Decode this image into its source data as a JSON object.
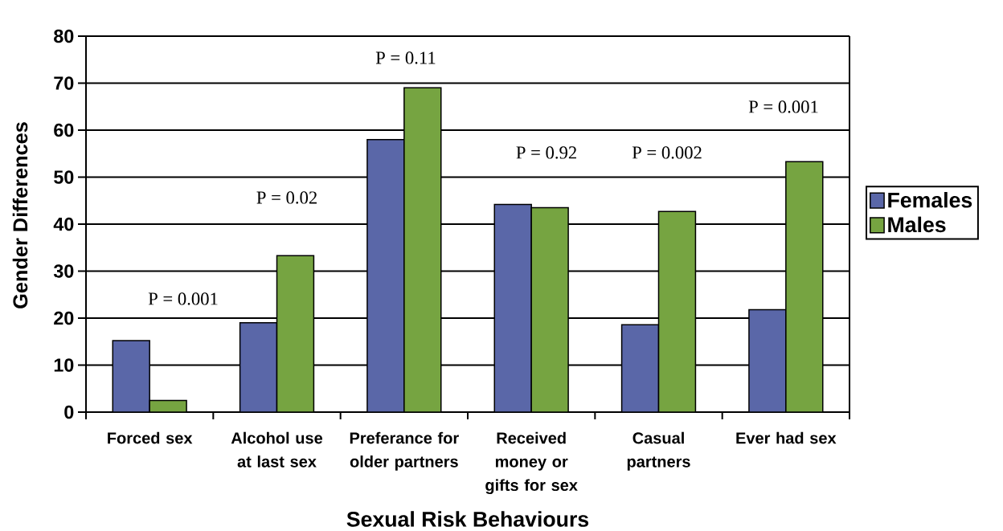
{
  "chart_data": {
    "type": "bar",
    "xlabel": "Sexual Risk Behaviours",
    "ylabel": "Gender Differences",
    "categories": [
      "Forced sex",
      "Alcohol use at last sex",
      "Preferance for older partners",
      "Received money or gifts for sex",
      "Casual partners",
      "Ever had sex"
    ],
    "series": [
      {
        "name": "Females",
        "color": "#5a67a8",
        "values": [
          15.2,
          19,
          58,
          44.2,
          18.6,
          21.8
        ]
      },
      {
        "name": "Males",
        "color": "#76a441",
        "values": [
          2.5,
          33.3,
          69,
          43.5,
          42.7,
          53.3
        ]
      }
    ],
    "ylim": [
      0,
      80
    ],
    "yticks": [
      0,
      10,
      20,
      30,
      40,
      50,
      60,
      70,
      80
    ],
    "grid": "y",
    "legend": "right",
    "annotations": [
      "P = 0.001",
      "P = 0.02",
      "P = 0.11",
      "P = 0.92",
      "P = 0.002",
      "P = 0.001"
    ]
  }
}
